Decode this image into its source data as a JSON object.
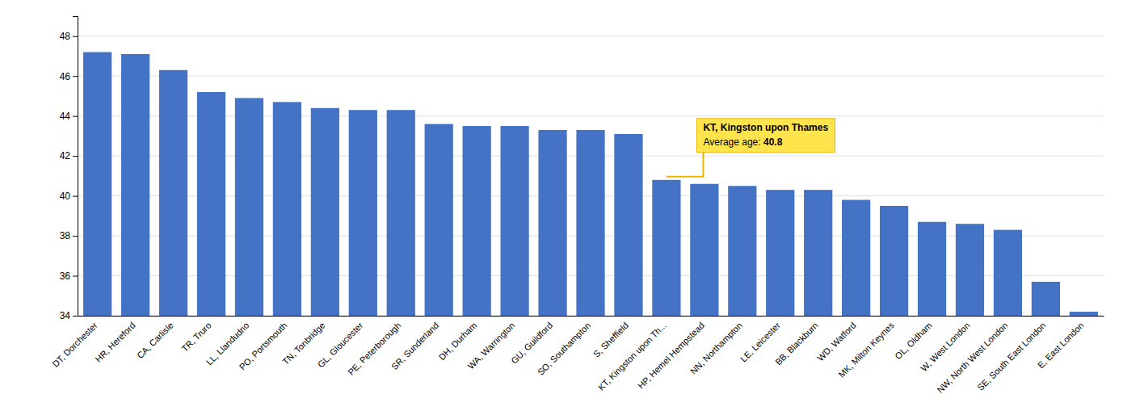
{
  "chart_data": {
    "type": "bar",
    "categories": [
      "DT, Dorchester",
      "HR, Hereford",
      "CA, Carlisle",
      "TR, Truro",
      "LL, Llandudno",
      "PO, Portsmouth",
      "TN, Tonbridge",
      "GL, Gloucester",
      "PE, Peterborough",
      "SR, Sunderland",
      "DH, Durham",
      "WA, Warrington",
      "GU, Guildford",
      "SO, Southampton",
      "S, Sheffield",
      "KT, Kingston upon Th...",
      "HP, Hemel Hempstead",
      "NN, Northampton",
      "LE, Leicester",
      "BB, Blackburn",
      "WD, Watford",
      "MK, Milton Keynes",
      "OL, Oldham",
      "W, West London",
      "NW, North West London",
      "SE, South East London",
      "E, East London"
    ],
    "values": [
      47.2,
      47.1,
      46.3,
      45.2,
      44.9,
      44.7,
      44.4,
      44.3,
      44.3,
      43.6,
      43.5,
      43.5,
      43.3,
      43.3,
      43.1,
      40.8,
      40.6,
      40.5,
      40.3,
      40.3,
      39.8,
      39.5,
      38.7,
      38.6,
      38.3,
      35.7,
      34.2
    ],
    "color": "#4472C4",
    "ylim": [
      34,
      49
    ],
    "yticks": [
      34,
      36,
      38,
      40,
      42,
      44,
      46,
      48
    ],
    "grid": true,
    "annotations": [
      {
        "category": "KT, Kingston upon Th...",
        "title": "KT, Kingston upon Thames",
        "label": "Average age: ",
        "value": 40.8
      }
    ]
  }
}
